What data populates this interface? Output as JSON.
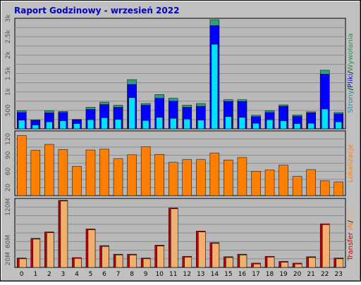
{
  "title": "Raport Godzinowy -  wrzesień 2022",
  "colors": {
    "background": "#c0c0c0",
    "plot_background": "#b8b8b8",
    "grid": "#8c8c8c",
    "title": "#0000c0",
    "pages": "#2ea082",
    "files": "#0000ff",
    "hits": "#00c0c0",
    "sites": "#ff8000",
    "traffic": "#c00000",
    "traffic_in": "#ff8000",
    "traffic_out": "#f0b070",
    "hits_fill": "#00e0ff"
  },
  "legends": {
    "top": [
      {
        "text": "Strony",
        "color": "#00a0a0"
      },
      {
        "text": "/",
        "color": "#000000"
      },
      {
        "text": "Pliki",
        "color": "#0000ff"
      },
      {
        "text": "/",
        "color": "#000000"
      },
      {
        "text": "Wywołania",
        "color": "#2e8b57"
      }
    ],
    "middle": [
      {
        "text": "Lokalizacje",
        "color": "#ff8000"
      }
    ],
    "bottom": [
      {
        "text": "Transfer",
        "color": "#c00000"
      },
      {
        "text": "IN",
        "color": "#ff8000"
      },
      {
        "text": "/",
        "color": "#000000"
      },
      {
        "text": "OUT",
        "color": "#f0b070"
      }
    ]
  },
  "chart_data": [
    {
      "type": "bar",
      "categories": [
        "0",
        "1",
        "2",
        "3",
        "4",
        "5",
        "6",
        "7",
        "8",
        "9",
        "10",
        "11",
        "12",
        "13",
        "14",
        "15",
        "16",
        "17",
        "18",
        "19",
        "20",
        "21",
        "22",
        "23"
      ],
      "y_ticks": [
        "500",
        "1k",
        "1.5k",
        "2k",
        "2.5k",
        "3k"
      ],
      "ylim": [
        0,
        3150
      ],
      "series": [
        {
          "name": "Wywołania",
          "values": [
            520,
            260,
            520,
            500,
            270,
            620,
            770,
            680,
            1420,
            730,
            990,
            880,
            680,
            730,
            3180,
            840,
            840,
            390,
            520,
            690,
            400,
            490,
            1690,
            470
          ]
        },
        {
          "name": "Pliki",
          "values": [
            470,
            240,
            460,
            470,
            260,
            560,
            700,
            620,
            1280,
            680,
            880,
            800,
            620,
            650,
            2980,
            790,
            790,
            350,
            470,
            650,
            360,
            460,
            1580,
            430
          ]
        },
        {
          "name": "Strony",
          "values": [
            250,
            110,
            200,
            230,
            150,
            260,
            320,
            270,
            900,
            240,
            330,
            300,
            280,
            250,
            2440,
            350,
            330,
            160,
            260,
            230,
            150,
            160,
            570,
            200
          ]
        }
      ]
    },
    {
      "type": "bar",
      "categories": [
        "0",
        "1",
        "2",
        "3",
        "4",
        "5",
        "6",
        "7",
        "8",
        "9",
        "10",
        "11",
        "12",
        "13",
        "14",
        "15",
        "16",
        "17",
        "18",
        "19",
        "20",
        "21",
        "22",
        "23"
      ],
      "y_ticks": [
        "20",
        "60",
        "90",
        "120"
      ],
      "ylim": [
        0,
        158
      ],
      "series": [
        {
          "name": "Lokalizacje",
          "values": [
            150,
            113,
            128,
            115,
            73,
            114,
            116,
            92,
            102,
            122,
            103,
            83,
            90,
            90,
            106,
            89,
            95,
            61,
            64,
            76,
            48,
            65,
            37,
            34
          ]
        }
      ]
    },
    {
      "type": "bar",
      "categories": [
        "0",
        "1",
        "2",
        "3",
        "4",
        "5",
        "6",
        "7",
        "8",
        "9",
        "10",
        "11",
        "12",
        "13",
        "14",
        "15",
        "16",
        "17",
        "18",
        "19",
        "20",
        "21",
        "22",
        "23"
      ],
      "y_ticks": [
        "20M",
        "60M",
        "120M"
      ],
      "ylim": [
        0,
        158
      ],
      "series": [
        {
          "name": "IN",
          "values": [
            22,
            68,
            83,
            157,
            23,
            90,
            51,
            31,
            31,
            22,
            52,
            139,
            26,
            85,
            58,
            25,
            31,
            10,
            26,
            14,
            10,
            25,
            102,
            22
          ]
        },
        {
          "name": "OUT",
          "values": [
            20,
            66,
            81,
            155,
            21,
            88,
            49,
            29,
            29,
            20,
            50,
            137,
            24,
            83,
            56,
            23,
            29,
            8,
            24,
            12,
            8,
            23,
            100,
            20
          ]
        }
      ]
    }
  ]
}
